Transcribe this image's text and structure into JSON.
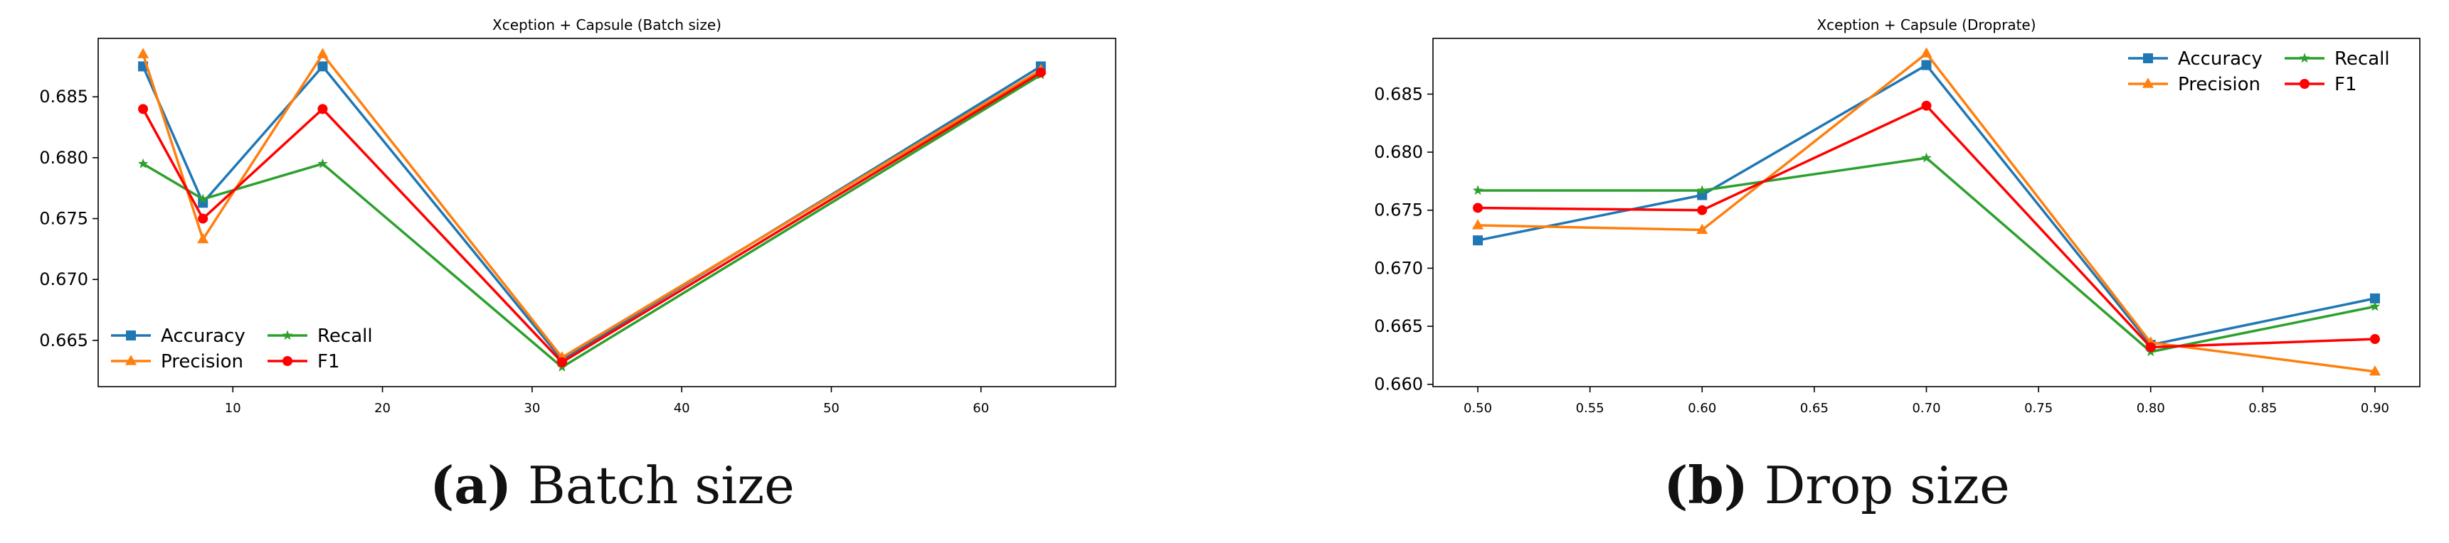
{
  "chart_data": [
    {
      "type": "line",
      "title": "Xception + Capsule (Batch size)",
      "xlabel": "",
      "ylabel": "",
      "x": [
        4,
        8,
        16,
        32,
        64
      ],
      "xlim": [
        1,
        69
      ],
      "ylim": [
        0.6612,
        0.6898
      ],
      "xticks": [
        10,
        20,
        30,
        40,
        50,
        60
      ],
      "yticks": [
        0.665,
        0.67,
        0.675,
        0.68,
        0.685
      ],
      "xtick_decimals": 0,
      "legend": "lower-left",
      "series": [
        {
          "name": "Accuracy",
          "color": "#1f77b4",
          "marker": "square",
          "values": [
            0.6875,
            0.6763,
            0.6875,
            0.6634,
            0.6875
          ]
        },
        {
          "name": "Precision",
          "color": "#ff7f0e",
          "marker": "triangle",
          "values": [
            0.6885,
            0.6733,
            0.6885,
            0.6636,
            0.6872
          ]
        },
        {
          "name": "Recall",
          "color": "#2ca02c",
          "marker": "star",
          "values": [
            0.6795,
            0.6766,
            0.6795,
            0.6628,
            0.6868
          ]
        },
        {
          "name": "F1",
          "color": "#ff0000",
          "marker": "circle",
          "values": [
            0.684,
            0.675,
            0.684,
            0.6632,
            0.687
          ]
        }
      ]
    },
    {
      "type": "line",
      "title": "Xception + Capsule (Droprate)",
      "xlabel": "",
      "ylabel": "",
      "x": [
        0.5,
        0.6,
        0.7,
        0.8,
        0.9
      ],
      "xlim": [
        0.48,
        0.92
      ],
      "ylim": [
        0.6598,
        0.6898
      ],
      "xticks": [
        0.5,
        0.55,
        0.6,
        0.65,
        0.7,
        0.75,
        0.8,
        0.85,
        0.9
      ],
      "yticks": [
        0.66,
        0.665,
        0.67,
        0.675,
        0.68,
        0.685
      ],
      "xtick_decimals": 2,
      "legend": "top-right",
      "series": [
        {
          "name": "Accuracy",
          "color": "#1f77b4",
          "marker": "square",
          "values": [
            0.6724,
            0.6763,
            0.6875,
            0.6634,
            0.6674
          ]
        },
        {
          "name": "Precision",
          "color": "#ff7f0e",
          "marker": "triangle",
          "values": [
            0.6737,
            0.6733,
            0.6885,
            0.6636,
            0.6611
          ]
        },
        {
          "name": "Recall",
          "color": "#2ca02c",
          "marker": "star",
          "values": [
            0.6767,
            0.6767,
            0.6795,
            0.6628,
            0.6667
          ]
        },
        {
          "name": "F1",
          "color": "#ff0000",
          "marker": "circle",
          "values": [
            0.6752,
            0.675,
            0.684,
            0.6632,
            0.6639
          ]
        }
      ]
    }
  ],
  "captions": [
    {
      "tag": "(a)",
      "text": "Batch size"
    },
    {
      "tag": "(b)",
      "text": "Drop size"
    }
  ]
}
